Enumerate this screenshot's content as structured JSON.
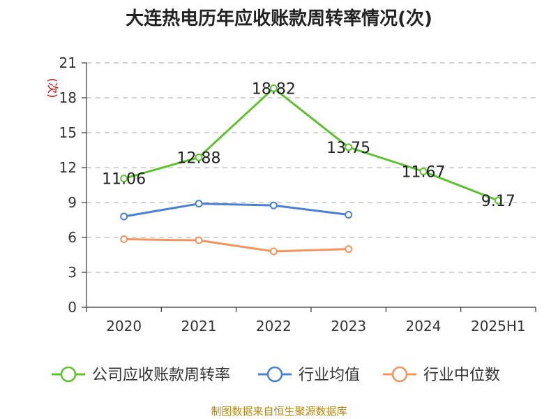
{
  "title": "大连热电历年应收账款周转率情况(次)",
  "source": "制图数据来自恒生聚源数据库",
  "chart_data": {
    "type": "line",
    "categories": [
      "2020",
      "2021",
      "2022",
      "2023",
      "2024",
      "2025H1"
    ],
    "ylabel": "(次)",
    "ylim": [
      0,
      21
    ],
    "yticks": [
      0,
      3,
      6,
      9,
      12,
      15,
      18,
      21
    ],
    "grid": true,
    "legend_position": "bottom",
    "series": [
      {
        "name": "公司应收账款周转率",
        "color": "#5ec12f",
        "show_labels": true,
        "values": [
          11.06,
          12.88,
          18.82,
          13.75,
          11.67,
          9.17
        ]
      },
      {
        "name": "行业均值",
        "color": "#4a7fd6",
        "show_labels": false,
        "values": [
          7.8,
          8.9,
          8.75,
          7.95,
          null,
          null
        ]
      },
      {
        "name": "行业中位数",
        "color": "#f4935c",
        "show_labels": false,
        "values": [
          5.85,
          5.75,
          4.8,
          5.0,
          null,
          null
        ]
      }
    ]
  }
}
